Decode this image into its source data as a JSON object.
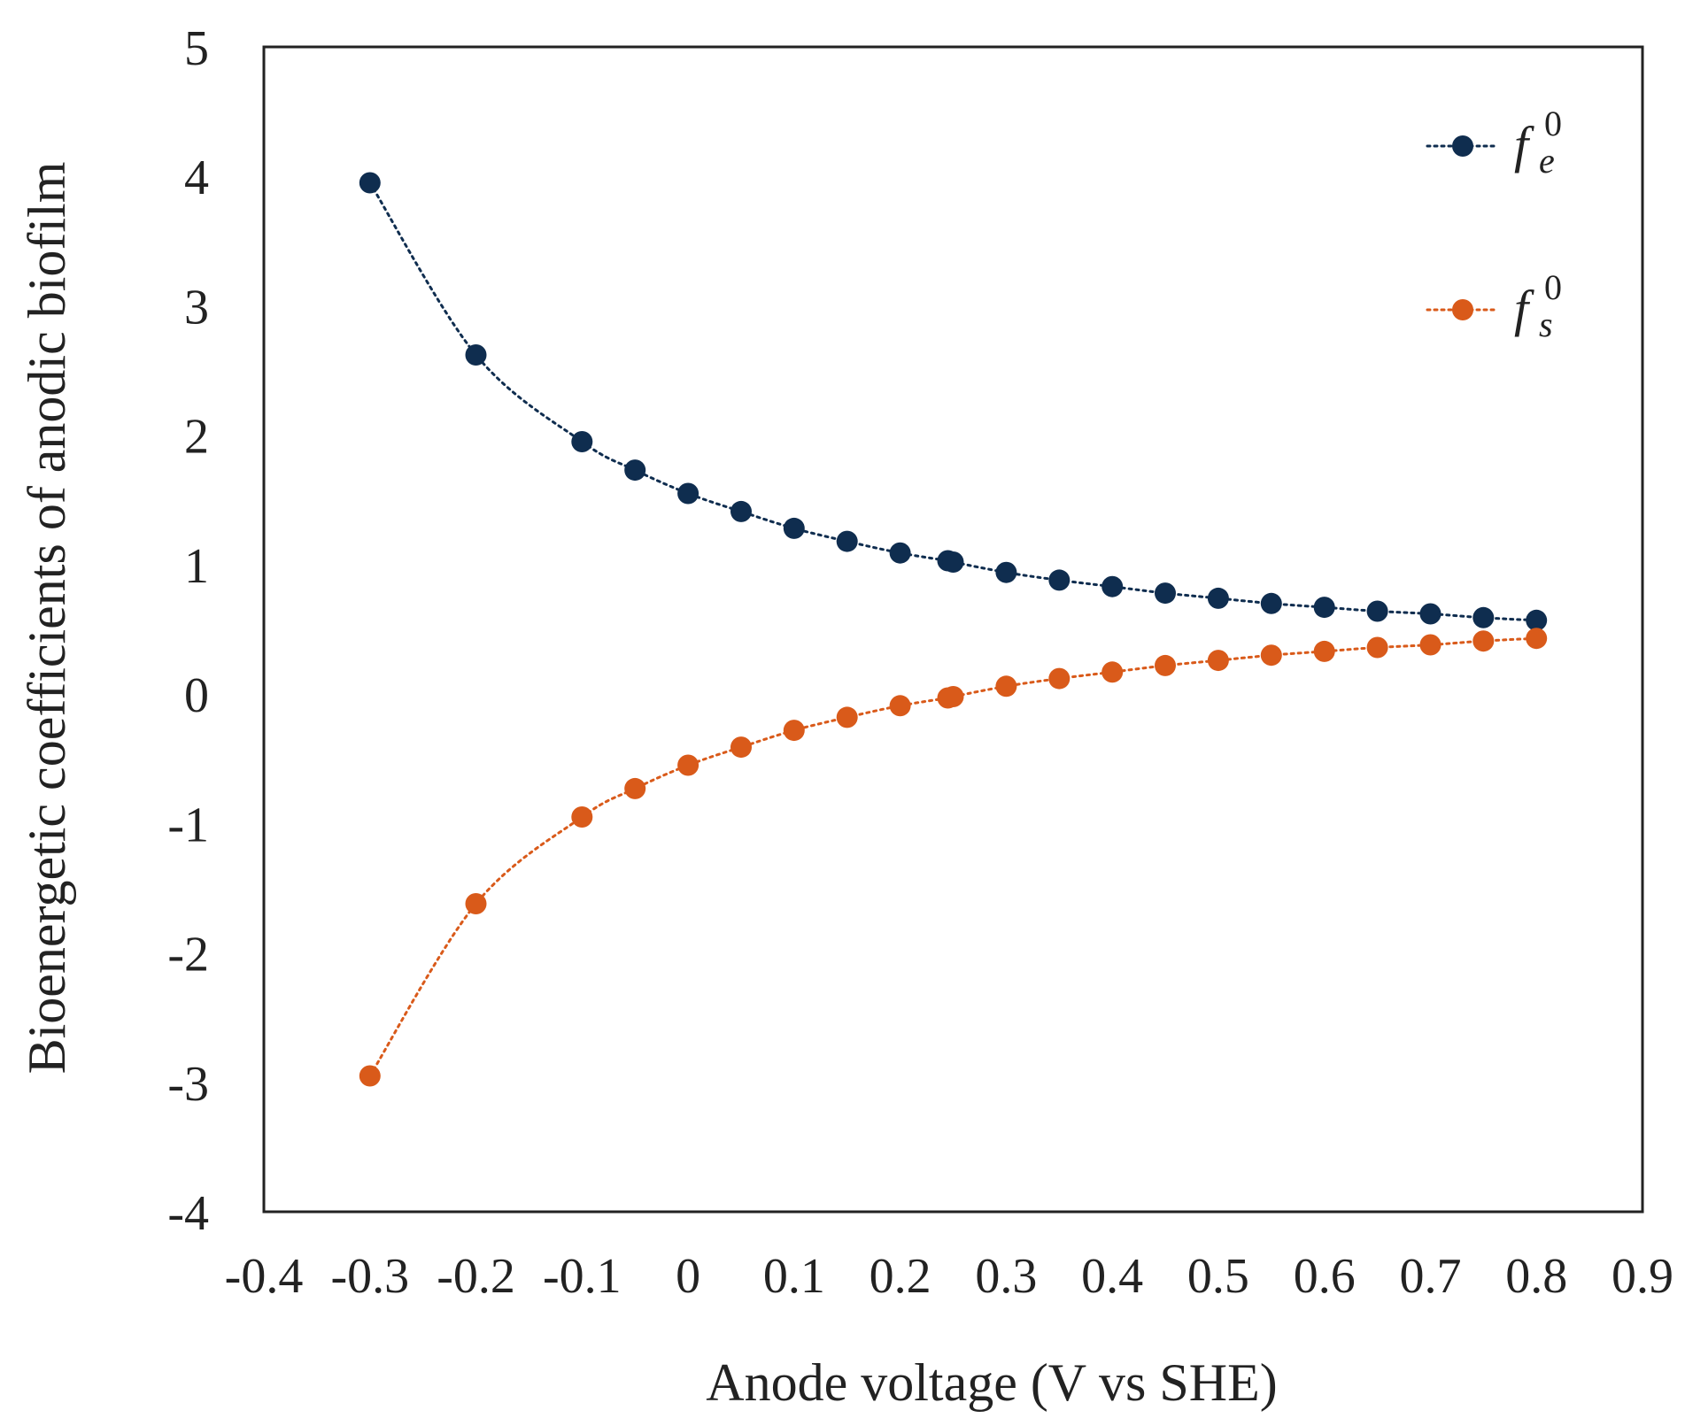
{
  "chart_data": {
    "type": "scatter",
    "title": "",
    "xlabel": "Anode voltage (V vs SHE)",
    "ylabel": "Bioenergetic coefficients of anodic biofilm",
    "xlim": [
      -0.4,
      0.9
    ],
    "ylim": [
      -4,
      5
    ],
    "xticks": [
      -0.4,
      -0.3,
      -0.2,
      -0.1,
      0,
      0.1,
      0.2,
      0.3,
      0.4,
      0.5,
      0.6,
      0.7,
      0.8,
      0.9
    ],
    "xtick_labels": [
      "-0.4",
      "-0.3",
      "-0.2",
      "-0.1",
      "0",
      "0.1",
      "0.2",
      "0.3",
      "0.4",
      "0.5",
      "0.6",
      "0.7",
      "0.8",
      "0.9"
    ],
    "yticks": [
      -4,
      -3,
      -2,
      -1,
      0,
      1,
      2,
      3,
      4,
      5
    ],
    "ytick_labels": [
      "-4",
      "-3",
      "-2",
      "-1",
      "0",
      "1",
      "2",
      "3",
      "4",
      "5"
    ],
    "grid": false,
    "legend_position": "top-right",
    "series": [
      {
        "name": "fe0",
        "label_main": "f",
        "label_sub": "e",
        "label_sup": "0",
        "color": "#0f2d4f",
        "x": [
          -0.3,
          -0.2,
          -0.1,
          -0.05,
          0,
          0.05,
          0.1,
          0.15,
          0.2,
          0.245,
          0.25,
          0.3,
          0.35,
          0.4,
          0.45,
          0.5,
          0.55,
          0.6,
          0.65,
          0.7,
          0.75,
          0.8
        ],
        "y": [
          3.95,
          2.62,
          1.95,
          1.73,
          1.55,
          1.41,
          1.28,
          1.18,
          1.09,
          1.03,
          1.02,
          0.94,
          0.88,
          0.83,
          0.78,
          0.74,
          0.7,
          0.67,
          0.64,
          0.62,
          0.59,
          0.57
        ]
      },
      {
        "name": "fs0",
        "label_main": "f",
        "label_sub": "s",
        "label_sup": "0",
        "color": "#d95a1a",
        "x": [
          -0.3,
          -0.2,
          -0.1,
          -0.05,
          0,
          0.05,
          0.1,
          0.15,
          0.2,
          0.245,
          0.25,
          0.3,
          0.35,
          0.4,
          0.45,
          0.5,
          0.55,
          0.6,
          0.65,
          0.7,
          0.75,
          0.8
        ],
        "y": [
          -2.95,
          -1.62,
          -0.95,
          -0.73,
          -0.55,
          -0.41,
          -0.28,
          -0.18,
          -0.09,
          -0.03,
          -0.02,
          0.06,
          0.12,
          0.17,
          0.22,
          0.26,
          0.3,
          0.33,
          0.36,
          0.38,
          0.41,
          0.43
        ]
      }
    ]
  }
}
